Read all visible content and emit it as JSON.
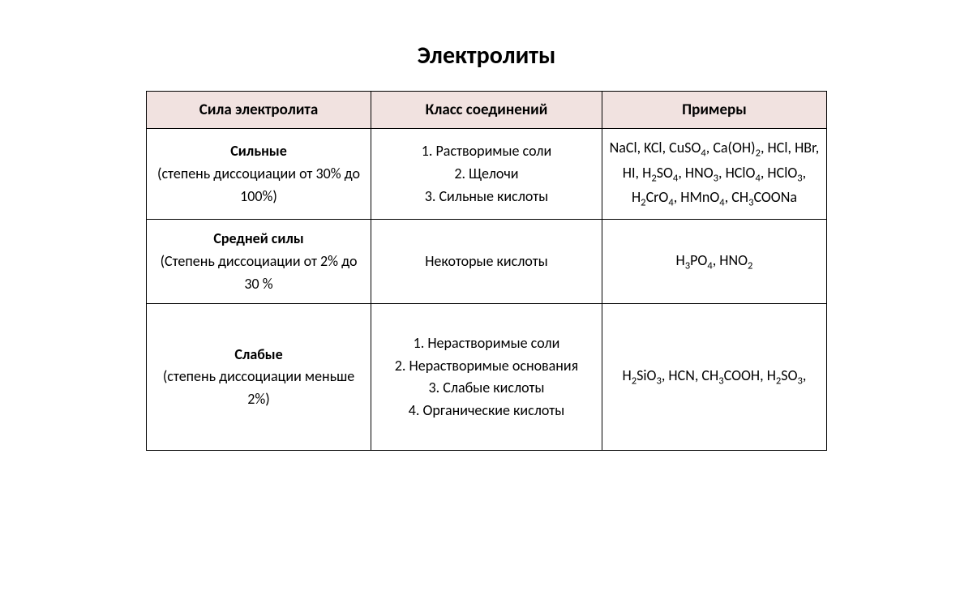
{
  "title": "Электролиты",
  "table": {
    "header_bg": "#f1e2e0",
    "border_color": "#000000",
    "columns": [
      "Сила электролита",
      "Класс соединений",
      "Примеры"
    ],
    "rows": [
      {
        "strength_title": "Сильные",
        "strength_sub": "(степень диссоциации от 30% до 100%)",
        "class_items": [
          "1. Растворимые соли",
          "2. Щелочи",
          "3. Сильные кислоты"
        ],
        "examples_html": "NaCl, KCl, CuSO<sub>4</sub>, Ca(OH)<sub>2</sub>, HCl, HBr, HI, H<sub>2</sub>SO<sub>4</sub>, HNO<sub>3</sub>, HClO<sub>4</sub>, HClO<sub>3</sub>, H<sub>2</sub>CrO<sub>4</sub>, HMnO<sub>4</sub>, CH<sub>3</sub>COONa"
      },
      {
        "strength_title": "Средней силы",
        "strength_sub": "(Степень диссоциации от 2% до 30 %",
        "class_items": [
          "Некоторые кислоты"
        ],
        "examples_html": "H<sub>3</sub>PO<sub>4</sub>, HNO<sub>2</sub>"
      },
      {
        "strength_title": "Слабые",
        "strength_sub": "(степень диссоциации меньше 2%)",
        "class_items": [
          "1. Нерастворимые соли",
          "2. Нерастворимые основания",
          "3. Слабые кислоты",
          "4. Органические кислоты"
        ],
        "examples_html": "H<sub>2</sub>SiO<sub>3</sub>, HCN, CH<sub>3</sub>COOH, H<sub>2</sub>SO<sub>3</sub>,"
      }
    ]
  }
}
